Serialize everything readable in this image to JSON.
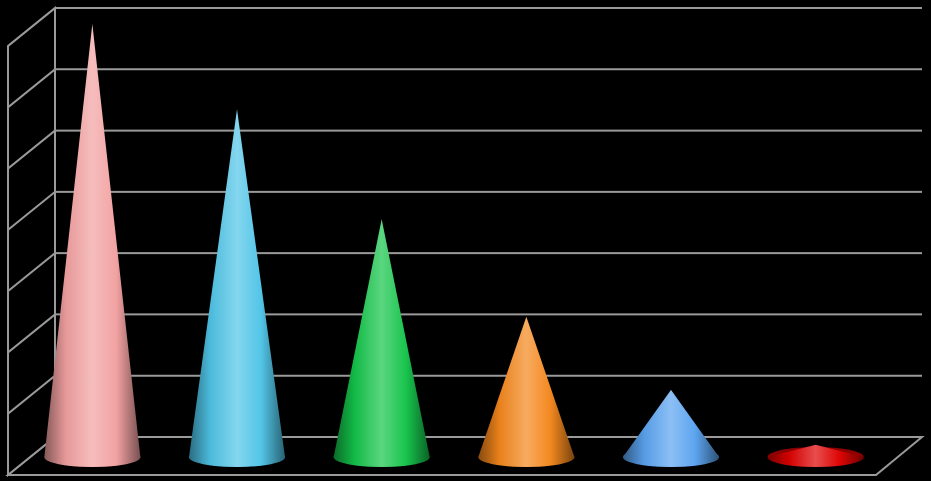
{
  "chart_data": {
    "type": "bar",
    "style": "3d-cone",
    "categories": [
      "",
      "",
      "",
      "",
      "",
      ""
    ],
    "values": [
      7.1,
      5.7,
      3.9,
      2.3,
      1.1,
      0.2
    ],
    "ylim": [
      0,
      7
    ],
    "ytick_count": 7,
    "grid": true,
    "legend": "none",
    "background": "#000000",
    "gridline_color": "#9a9a9a",
    "colors": [
      "#f2a0a0",
      "#4fc4e6",
      "#14c44a",
      "#f4871c",
      "#5aa3f0",
      "#dd0000"
    ]
  }
}
